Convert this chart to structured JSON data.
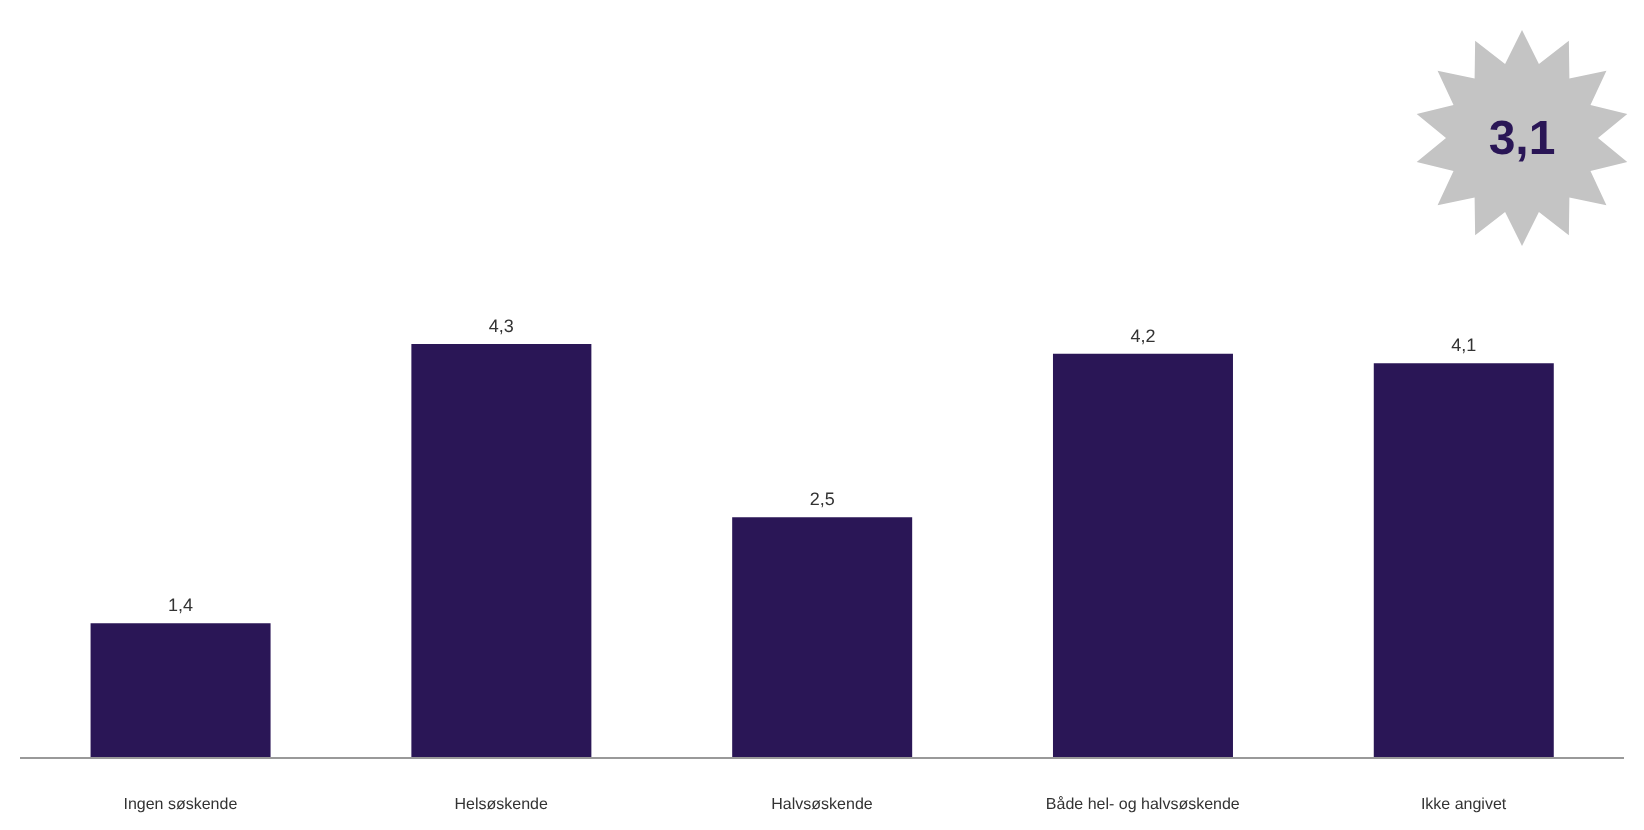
{
  "chart_data": {
    "type": "bar",
    "categories": [
      "Ingen søskende",
      "Helsøskende",
      "Halvsøskende",
      "Både hel- og halvsøskende",
      "Ikke angivet"
    ],
    "values": [
      1.4,
      4.3,
      2.5,
      4.2,
      4.1
    ],
    "value_labels": [
      "1,4",
      "4,3",
      "2,5",
      "4,2",
      "4,1"
    ],
    "color": "#2a1656",
    "annotations": [
      "3,1"
    ],
    "grid": false,
    "legend": false
  }
}
